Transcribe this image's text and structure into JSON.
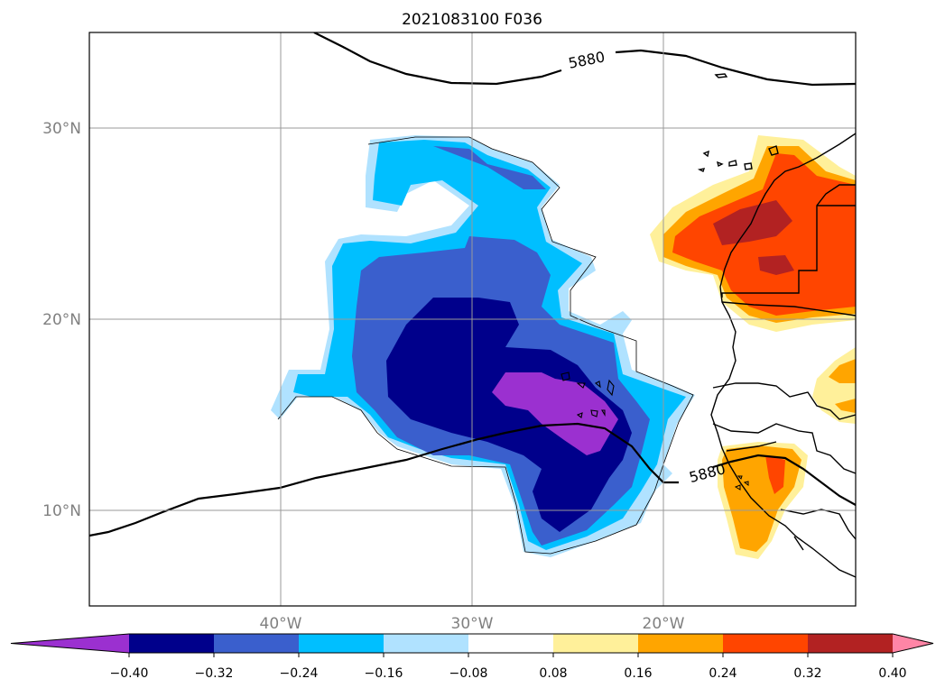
{
  "map": {
    "title": "2021083100 F036",
    "lat_labels": [
      "30°N",
      "20°N",
      "10°N"
    ],
    "lon_labels": [
      "40°W",
      "30°W",
      "20°W"
    ],
    "contour_labels": [
      "5880",
      "5880"
    ]
  },
  "colorbar": {
    "ticks": [
      "−0.40",
      "−0.32",
      "−0.24",
      "−0.16",
      "−0.08",
      "0.08",
      "0.16",
      "0.24",
      "0.32",
      "0.40"
    ],
    "colors": [
      "#9b30d0",
      "#00008b",
      "#3a5fcd",
      "#00bfff",
      "#b0e2ff",
      "#ffffff",
      "#fff09a",
      "#ffa500",
      "#ff4500",
      "#b22222",
      "#ff85a6"
    ]
  }
}
